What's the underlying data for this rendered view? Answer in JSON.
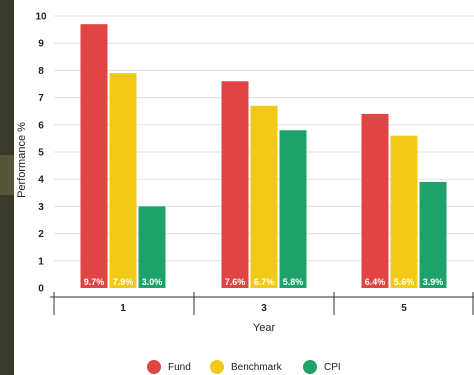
{
  "chart_data": {
    "type": "bar",
    "categories": [
      "1",
      "3",
      "5"
    ],
    "series": [
      {
        "name": "Fund",
        "color": "#e04444",
        "values": [
          9.7,
          7.6,
          6.4
        ],
        "labels": [
          "9.7%",
          "7.6%",
          "6.4%"
        ]
      },
      {
        "name": "Benchmark",
        "color": "#f2c919",
        "values": [
          7.9,
          6.7,
          5.6
        ],
        "labels": [
          "7.9%",
          "6.7%",
          "5.6%"
        ]
      },
      {
        "name": "CPI",
        "color": "#1fa26a",
        "values": [
          3.0,
          5.8,
          3.9
        ],
        "labels": [
          "3.0%",
          "5.8%",
          "3.9%"
        ]
      }
    ],
    "xlabel": "Year",
    "ylabel": "Performance %",
    "ylim": [
      0,
      10
    ],
    "yticks": [
      0,
      1,
      2,
      3,
      4,
      5,
      6,
      7,
      8,
      9,
      10
    ],
    "grid": true,
    "legend": "bottom"
  }
}
